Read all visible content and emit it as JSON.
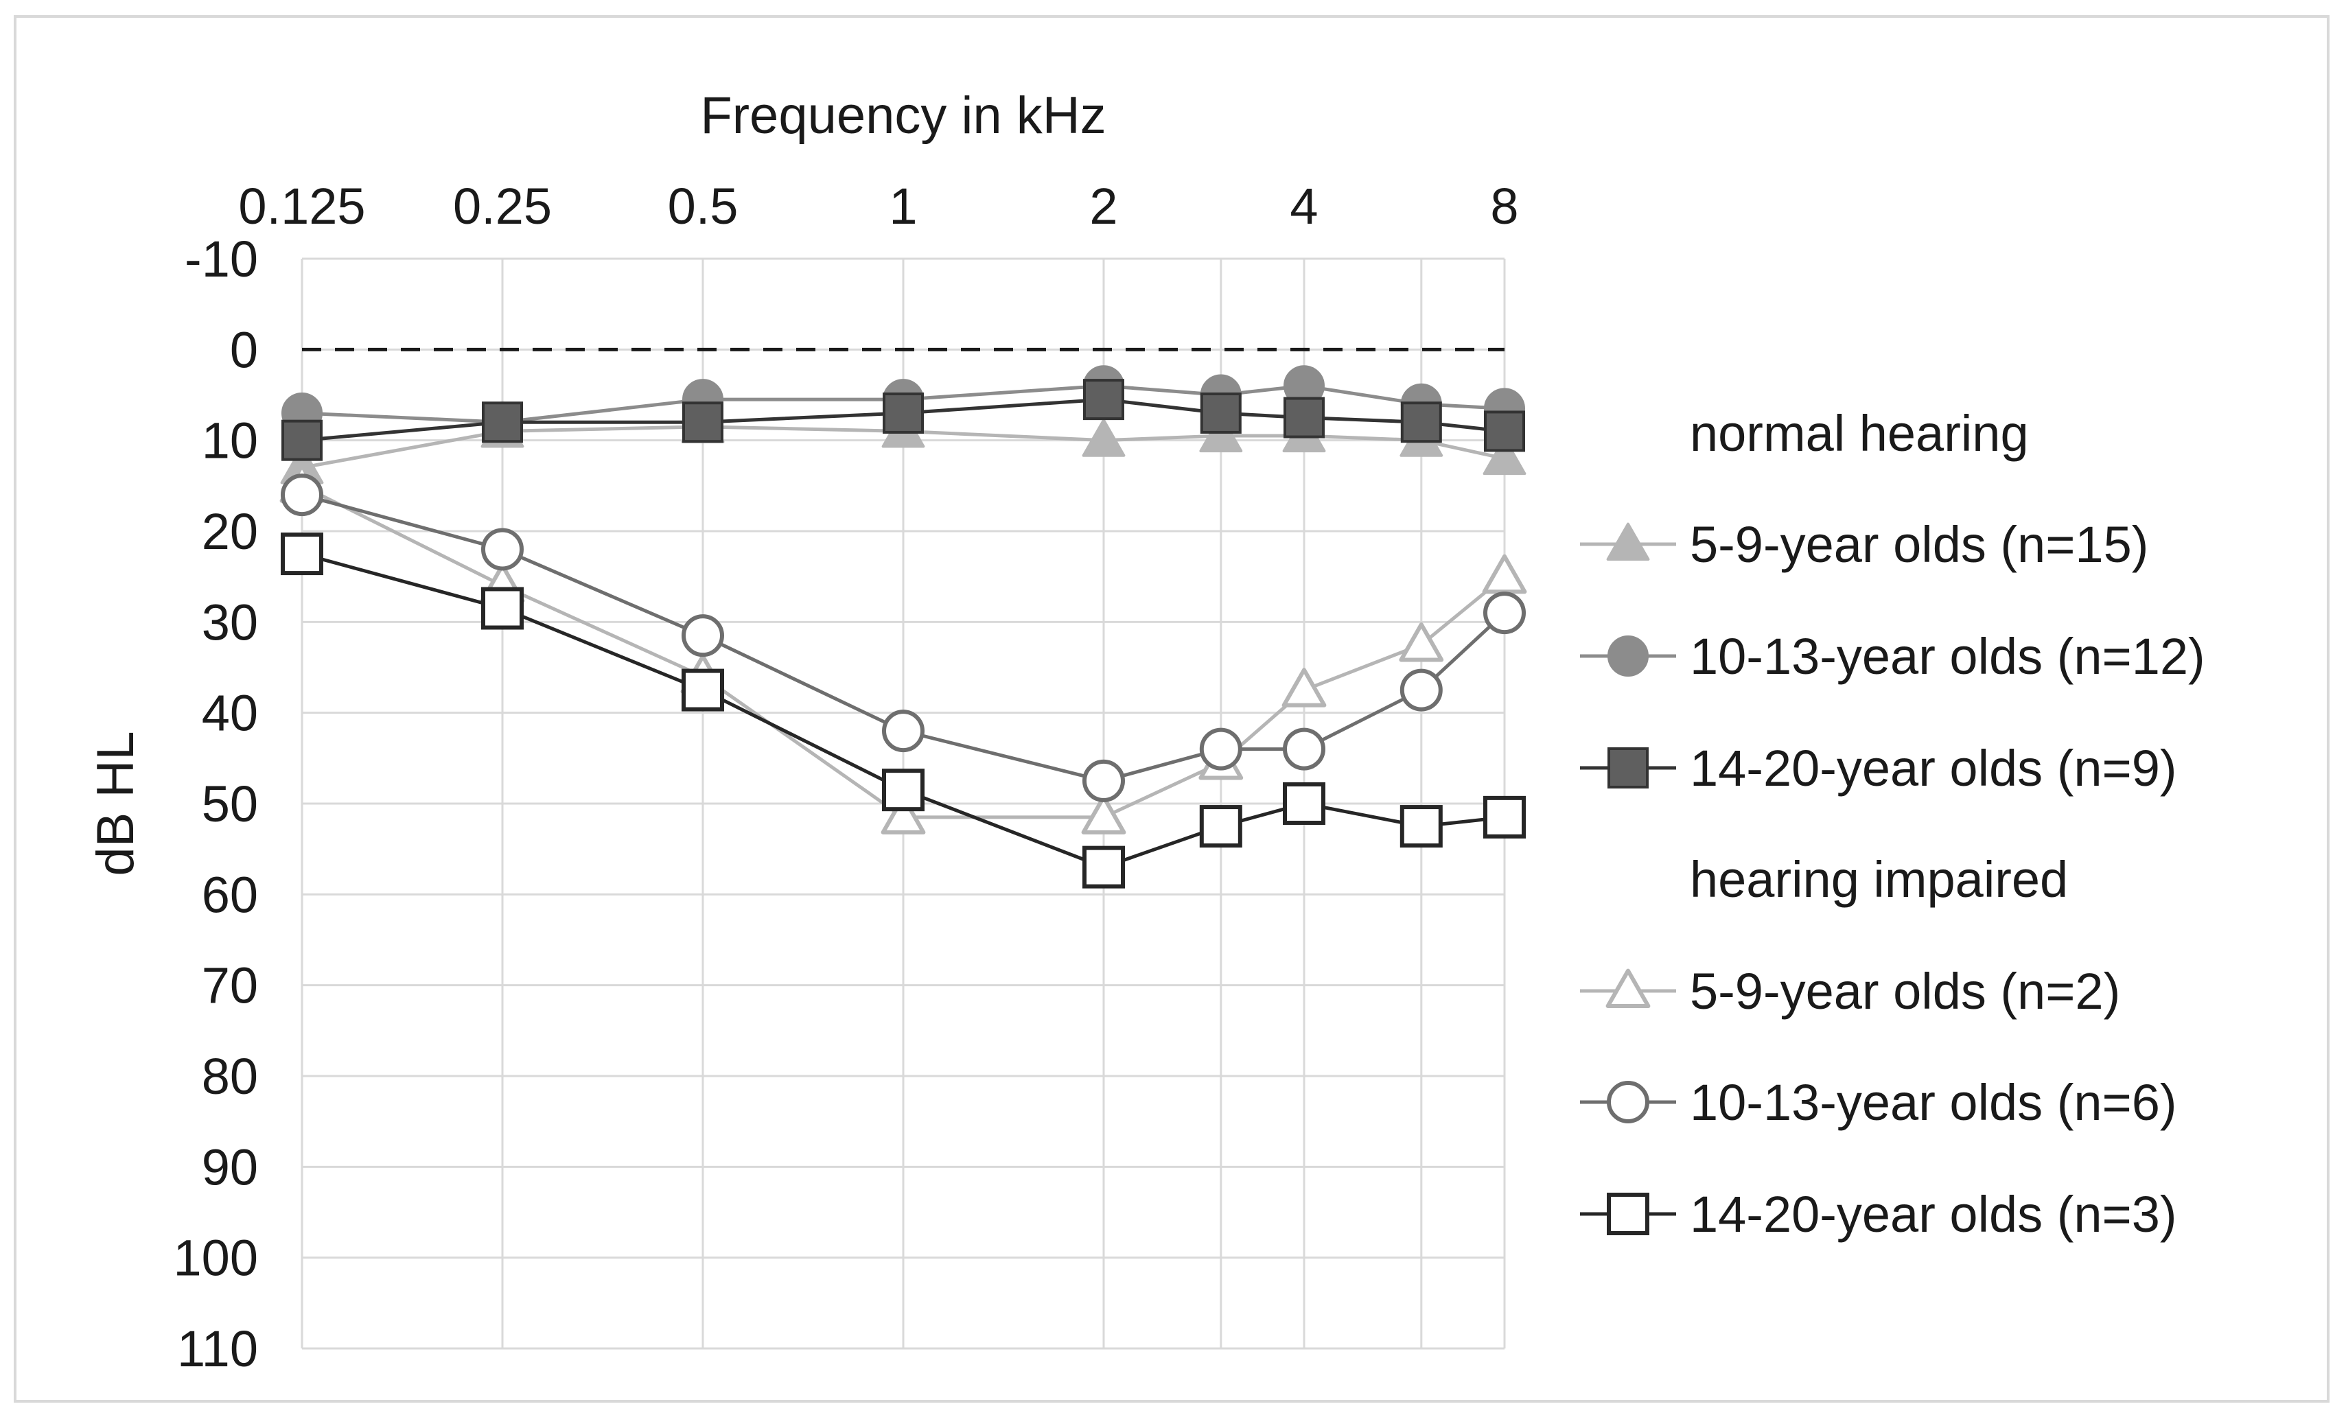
{
  "chart_data": {
    "type": "line",
    "x_axis": {
      "label": "Frequency in kHz",
      "position": "top",
      "ticks": [
        "0.125",
        "0.25",
        "0.5",
        "1",
        "2",
        "4",
        "8"
      ],
      "scale": "log2",
      "range": [
        0.125,
        8
      ]
    },
    "y_axis": {
      "label": "dB HL",
      "inverted": true,
      "range": [
        -10,
        110
      ],
      "ticks": [
        "-10",
        "0",
        "10",
        "20",
        "30",
        "40",
        "50",
        "60",
        "70",
        "80",
        "90",
        "100",
        "110"
      ]
    },
    "grid": true,
    "reference_line": {
      "y": 0,
      "style": "dashed"
    },
    "x": [
      0.125,
      0.25,
      0.5,
      1,
      2,
      3,
      4,
      6,
      8
    ],
    "legend_placement": "right",
    "groups": [
      {
        "id": "normal",
        "label": "normal hearing"
      },
      {
        "id": "impaired",
        "label": "hearing impaired"
      }
    ],
    "series": [
      {
        "name": "5-9-year olds (n=15)",
        "group": "normal",
        "marker": "triangle",
        "filled": true,
        "color": "#b5b5b5",
        "values": [
          13,
          9,
          8.5,
          9,
          10,
          9.5,
          9.5,
          10,
          12
        ]
      },
      {
        "name": "10-13-year olds (n=12)",
        "group": "normal",
        "marker": "circle",
        "filled": true,
        "color": "#8c8c8c",
        "values": [
          7,
          8,
          5.5,
          5.5,
          4,
          5,
          4,
          6,
          6.5
        ]
      },
      {
        "name": "14-20-year olds (n=9)",
        "group": "normal",
        "marker": "square",
        "filled": true,
        "color": "#333333",
        "fill": "#5f5f5f",
        "values": [
          10,
          8,
          8,
          7,
          5.5,
          7,
          7.5,
          8,
          9
        ]
      },
      {
        "name": "5-9-year olds (n=2)",
        "group": "impaired",
        "marker": "triangle",
        "filled": false,
        "color": "#b5b5b5",
        "values": [
          15,
          26,
          36,
          51.5,
          51.5,
          45.5,
          37.5,
          32.5,
          25
        ]
      },
      {
        "name": "10-13-year olds (n=6)",
        "group": "impaired",
        "marker": "circle",
        "filled": false,
        "color": "#6e6e6e",
        "values": [
          16,
          22,
          31.5,
          42,
          47.5,
          44,
          44,
          37.5,
          29
        ]
      },
      {
        "name": "14-20-year olds (n=3)",
        "group": "impaired",
        "marker": "square",
        "filled": false,
        "color": "#262626",
        "values": [
          22.5,
          28.5,
          37.5,
          48.5,
          57,
          52.5,
          50,
          52.5,
          51.5
        ]
      }
    ]
  }
}
